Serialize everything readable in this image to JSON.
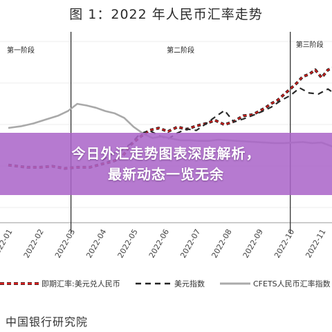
{
  "title": "图 1：2022 年人民币汇率走势",
  "banner": {
    "line1": "今日外汇走势图表深度解析，",
    "line2": "最新动态一览无余"
  },
  "source": "中国银行研究院",
  "chart_data": {
    "type": "line",
    "title": "图 1：2022 年人民币汇率走势",
    "x_ticks": [
      "2022-01",
      "2022-02",
      "2022-03",
      "2022-04",
      "2022-05",
      "2022-06",
      "2022-07",
      "2022-08",
      "2022-09",
      "2022-10",
      "2022-11"
    ],
    "stages": [
      {
        "label": "第一阶段",
        "start": "2022-01",
        "end": "2022-03"
      },
      {
        "label": "第二阶段",
        "start": "2022-03",
        "end": "2022-10"
      },
      {
        "label": "第三阶段",
        "start": "2022-10",
        "end": "2022-11"
      }
    ],
    "series": [
      {
        "name": "即期汇率:美元兑人民币",
        "style": "red-black dashed",
        "color": "#c8201e",
        "x": [
          0,
          0.3,
          0.6,
          1.0,
          1.4,
          1.8,
          2.2,
          2.6,
          3.0,
          3.3,
          3.6,
          3.9,
          4.2,
          4.5,
          4.8,
          5.1,
          5.4,
          5.7,
          6.0,
          6.3,
          6.6,
          6.9,
          7.2,
          7.5,
          7.8,
          8.0,
          8.2,
          8.4,
          8.6,
          8.8,
          9.0,
          9.2,
          9.4,
          9.6,
          9.8,
          10.0,
          10.2,
          10.4,
          10.6,
          10.8,
          11.0,
          11.2,
          11.3
        ],
        "y": [
          6.37,
          6.36,
          6.35,
          6.35,
          6.36,
          6.34,
          6.35,
          6.35,
          6.38,
          6.4,
          6.43,
          6.55,
          6.62,
          6.68,
          6.7,
          6.67,
          6.71,
          6.69,
          6.72,
          6.74,
          6.77,
          6.73,
          6.76,
          6.81,
          6.82,
          6.85,
          6.88,
          6.92,
          6.95,
          7.0,
          7.05,
          7.1,
          7.16,
          7.18,
          7.22,
          7.15,
          7.22,
          7.24,
          7.25,
          7.19,
          7.14,
          7.17,
          7.12
        ]
      },
      {
        "name": "美元指数",
        "style": "black dashed",
        "color": "#2a2a2a",
        "x": [
          3.0,
          3.3,
          3.6,
          3.9,
          4.2,
          4.5,
          4.8,
          5.1,
          5.4,
          5.7,
          6.0,
          6.3,
          6.6,
          6.9,
          7.2,
          7.5,
          7.8,
          8.1,
          8.4,
          8.7,
          9.0,
          9.3,
          9.6,
          9.9,
          10.2,
          10.5,
          10.8,
          11.0,
          11.2
        ],
        "y": [
          98.5,
          99.8,
          100.5,
          101.8,
          103.8,
          104.5,
          103.5,
          102.8,
          104.0,
          104.8,
          104.5,
          105.8,
          107.2,
          108.5,
          106.2,
          106.8,
          107.5,
          108.3,
          109.2,
          110.5,
          111.5,
          113.0,
          112.0,
          111.8,
          112.8,
          111.5,
          110.2,
          108.0,
          106.5
        ]
      },
      {
        "name": "CFETS人民币汇率指数",
        "style": "gray solid",
        "color": "#a9a9a9",
        "x": [
          0,
          0.4,
          0.8,
          1.2,
          1.6,
          1.9,
          2.2,
          2.5,
          2.8,
          3.1,
          3.4,
          3.7,
          4.0,
          4.3,
          4.6,
          4.9,
          5.2,
          5.5,
          5.8,
          6.1,
          6.4,
          6.7,
          7.0,
          7.3,
          7.6,
          7.9,
          8.2,
          8.5,
          8.8,
          9.1,
          9.4,
          9.7,
          10.0,
          10.3,
          10.6,
          10.9,
          11.2,
          11.4
        ],
        "y": [
          102.0,
          102.3,
          102.8,
          103.5,
          104.2,
          105.0,
          106.3,
          106.0,
          105.6,
          105.0,
          104.6,
          103.8,
          102.2,
          101.0,
          100.2,
          100.5,
          100.1,
          99.8,
          99.8,
          99.7,
          99.7,
          99.9,
          99.8,
          99.7,
          99.6,
          99.5,
          99.4,
          99.3,
          99.3,
          99.4,
          99.5,
          99.3,
          99.4,
          98.8,
          98.0,
          97.8,
          98.6,
          98.8
        ]
      }
    ]
  }
}
